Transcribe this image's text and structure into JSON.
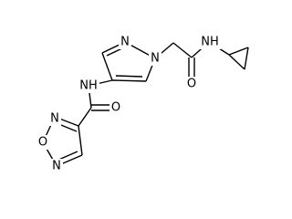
{
  "atoms": [
    {
      "label": "N"
    },
    {
      "label": "N"
    },
    {
      "label": "O"
    },
    {
      "label": "NH"
    },
    {
      "label": "NH"
    },
    {
      "label": "O"
    },
    {
      "label": "N"
    },
    {
      "label": "O"
    },
    {
      "label": "N"
    }
  ]
}
